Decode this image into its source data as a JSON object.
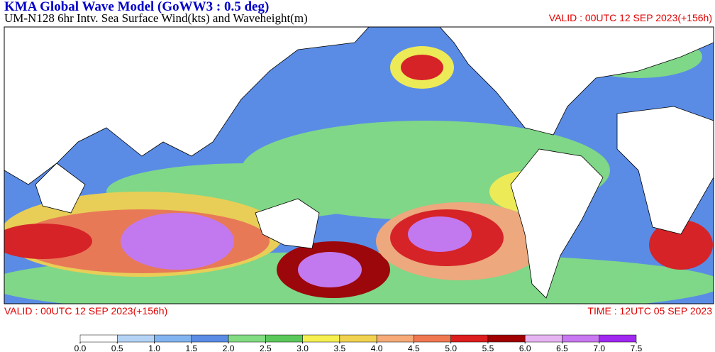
{
  "header": {
    "title": "KMA  Global Wave Model (GoWW3 : 0.5 deg)",
    "subtitle": "UM-N128  6hr Intv. Sea Surface Wind(kts) and Waveheight(m)",
    "valid": "VALID : 00UTC 12 SEP 2023(+156h)"
  },
  "footer": {
    "valid": "VALID : 00UTC 12 SEP 2023(+156h)",
    "time": "TIME : 12UTC 05 SEP 2023"
  },
  "colorbar": {
    "ticks": [
      {
        "value": 0,
        "label": "0.0"
      },
      0.5,
      {
        "value": 1,
        "label": "1.0"
      },
      1.5,
      {
        "value": 2,
        "label": "2.0"
      },
      2.5,
      {
        "value": 3,
        "label": "3.0"
      },
      3.5,
      {
        "value": 4,
        "label": "4.0"
      },
      4.5,
      {
        "value": 5,
        "label": "5.0"
      },
      5.5,
      {
        "value": 6,
        "label": "6.0"
      },
      6.5,
      {
        "value": 7,
        "label": "7.0"
      },
      7.5
    ],
    "colors": [
      "#ffffff",
      "#b4d3f5",
      "#82b4f0",
      "#5a8ce6",
      "#82dc82",
      "#5ac85a",
      "#f5f050",
      "#f0d250",
      "#f5aa78",
      "#f07850",
      "#dc1e1e",
      "#a00000",
      "#e6b4f0",
      "#c878f0",
      "#a028f0"
    ]
  }
}
